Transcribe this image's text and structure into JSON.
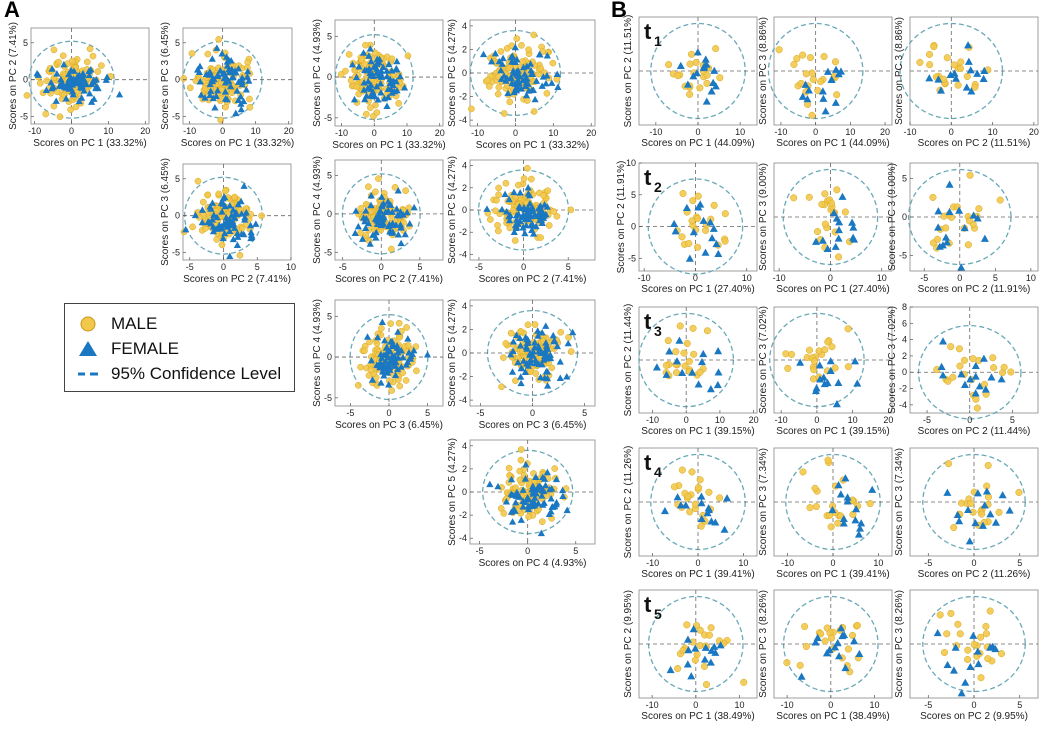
{
  "figure": {
    "panel_a_letter": "A",
    "panel_b_letter": "B",
    "legend": {
      "male": "MALE",
      "female": "FEMALE",
      "confidence": "95% Confidence Level"
    },
    "colors": {
      "male": "#f2c84b",
      "male_edge": "#d9a81e",
      "female": "#1a78c2",
      "ellipse": "#6aa9b8",
      "cross": "#666666"
    }
  },
  "chart_data": [
    {
      "id": "A-r0c0",
      "type": "scatter",
      "xlabel": "Scores on PC 1 (33.32%)",
      "ylabel": "Scores on PC 2 (7.41%)",
      "xticks": [
        -10,
        0,
        10,
        20
      ],
      "yticks": [
        -5,
        0,
        5
      ],
      "xlim": [
        -11,
        21
      ],
      "ylim": [
        -6,
        7
      ]
    },
    {
      "id": "A-r0c1",
      "type": "scatter",
      "xlabel": "Scores on PC 1 (33.32%)",
      "ylabel": "Scores on PC 3 (6.45%)",
      "xticks": [
        -10,
        0,
        10,
        20
      ],
      "yticks": [
        -5,
        0,
        5
      ],
      "xlim": [
        -12,
        21
      ],
      "ylim": [
        -6,
        7
      ]
    },
    {
      "id": "A-r0c2",
      "type": "scatter",
      "xlabel": "Scores on PC 1 (33.32%)",
      "ylabel": "Scores on PC 4 (4.93%)",
      "xticks": [
        -10,
        0,
        10,
        20
      ],
      "yticks": [
        -5,
        0,
        5
      ],
      "xlim": [
        -12,
        21
      ],
      "ylim": [
        -6,
        7
      ]
    },
    {
      "id": "A-r0c3",
      "type": "scatter",
      "xlabel": "Scores on PC 1 (33.32%)",
      "ylabel": "Scores on PC 5 (4.27%)",
      "xticks": [
        -10,
        0,
        10,
        20
      ],
      "yticks": [
        -4,
        -2,
        0,
        2,
        4
      ],
      "xlim": [
        -12,
        21
      ],
      "ylim": [
        -4.5,
        4.5
      ]
    },
    {
      "id": "A-r1c1",
      "type": "scatter",
      "xlabel": "Scores on PC 2 (7.41%)",
      "ylabel": "Scores on PC 3 (6.45%)",
      "xticks": [
        -5,
        0,
        5,
        10
      ],
      "yticks": [
        -5,
        0,
        5
      ],
      "xlim": [
        -6,
        10
      ],
      "ylim": [
        -6,
        7
      ]
    },
    {
      "id": "A-r1c2",
      "type": "scatter",
      "xlabel": "Scores on PC 2 (7.41%)",
      "ylabel": "Scores on PC 4 (4.93%)",
      "xticks": [
        -5,
        0,
        5
      ],
      "yticks": [
        -5,
        0,
        5
      ],
      "xlim": [
        -6,
        8
      ],
      "ylim": [
        -6,
        7
      ]
    },
    {
      "id": "A-r1c3",
      "type": "scatter",
      "xlabel": "Scores on PC 2 (7.41%)",
      "ylabel": "Scores on PC 5 (4.27%)",
      "xticks": [
        -5,
        0,
        5
      ],
      "yticks": [
        -4,
        -2,
        0,
        2,
        4
      ],
      "xlim": [
        -6,
        8
      ],
      "ylim": [
        -4.5,
        4.5
      ]
    },
    {
      "id": "A-r2c2",
      "type": "scatter",
      "xlabel": "Scores on PC 3 (6.45%)",
      "ylabel": "Scores on PC 4 (4.93%)",
      "xticks": [
        -5,
        0,
        5
      ],
      "yticks": [
        -5,
        0,
        5
      ],
      "xlim": [
        -7,
        7
      ],
      "ylim": [
        -6,
        7
      ]
    },
    {
      "id": "A-r2c3",
      "type": "scatter",
      "xlabel": "Scores on PC 3 (6.45%)",
      "ylabel": "Scores on PC 5 (4.27%)",
      "xticks": [
        -5,
        0,
        5
      ],
      "yticks": [
        -4,
        -2,
        0,
        2,
        4
      ],
      "xlim": [
        -6,
        6
      ],
      "ylim": [
        -4.5,
        4.5
      ]
    },
    {
      "id": "A-r3c3",
      "type": "scatter",
      "xlabel": "Scores on PC 4 (4.93%)",
      "ylabel": "Scores on PC 5 (4.27%)",
      "xticks": [
        -5,
        0,
        5
      ],
      "yticks": [
        -4,
        -2,
        0,
        2,
        4
      ],
      "xlim": [
        -6,
        7
      ],
      "ylim": [
        -4.5,
        4.5
      ]
    },
    {
      "id": "B-t1-c0",
      "type": "scatter",
      "time_label": "t",
      "time_sub": "1",
      "xlabel": "Scores on PC 1 (44.09%)",
      "ylabel": "Scores on PC 2 (11.51%)",
      "xticks": [
        -10,
        0,
        10
      ],
      "yticks": [],
      "xlim": [
        -14,
        14
      ],
      "ylim": [
        -6,
        6
      ]
    },
    {
      "id": "B-t1-c1",
      "type": "scatter",
      "xlabel": "Scores on PC 1 (44.09%)",
      "ylabel": "Scores on PC 3 (8.86%)",
      "xticks": [
        -10,
        0,
        10,
        20
      ],
      "yticks": [],
      "xlim": [
        -12,
        22
      ],
      "ylim": [
        -6,
        6
      ]
    },
    {
      "id": "B-t1-c2",
      "type": "scatter",
      "xlabel": "Scores on PC 2 (11.51%)",
      "ylabel": "Scores on PC 3 (8.86%)",
      "xticks": [
        -10,
        0,
        10,
        20
      ],
      "yticks": [],
      "xlim": [
        -10,
        21
      ],
      "ylim": [
        -6,
        6
      ]
    },
    {
      "id": "B-t2-c0",
      "type": "scatter",
      "time_label": "t",
      "time_sub": "2",
      "xlabel": "Scores on PC 1 (27.40%)",
      "ylabel": "Scores on PC 2 (11.91%)",
      "xticks": [
        -10,
        0,
        10
      ],
      "yticks": [
        -5,
        0,
        5,
        10
      ],
      "xlim": [
        -11,
        12
      ],
      "ylim": [
        -7,
        10
      ]
    },
    {
      "id": "B-t2-c1",
      "type": "scatter",
      "xlabel": "Scores on PC 1 (27.40%)",
      "ylabel": "Scores on PC 3 (9.00%)",
      "xticks": [
        -10,
        0,
        10
      ],
      "yticks": [],
      "xlim": [
        -11,
        12
      ],
      "ylim": [
        -7,
        7
      ]
    },
    {
      "id": "B-t2-c2",
      "type": "scatter",
      "xlabel": "Scores on PC 2 (11.91%)",
      "ylabel": "Scores on PC 3 (9.00%)",
      "xticks": [
        -5,
        0,
        5,
        10
      ],
      "yticks": [
        -5,
        0,
        5
      ],
      "xlim": [
        -7,
        11
      ],
      "ylim": [
        -7,
        7
      ]
    },
    {
      "id": "B-t3-c0",
      "type": "scatter",
      "time_label": "t",
      "time_sub": "3",
      "xlabel": "Scores on PC 1 (39.15%)",
      "ylabel": "Scores on PC 2 (11.44%)",
      "xticks": [
        -10,
        0,
        10,
        20
      ],
      "yticks": [],
      "xlim": [
        -14,
        21
      ],
      "ylim": [
        -7,
        7
      ]
    },
    {
      "id": "B-t3-c1",
      "type": "scatter",
      "xlabel": "Scores on PC 1 (39.15%)",
      "ylabel": "Scores on PC 3 (7.02%)",
      "xticks": [
        -10,
        0,
        10,
        20
      ],
      "yticks": [],
      "xlim": [
        -12,
        21
      ],
      "ylim": [
        -7,
        7
      ]
    },
    {
      "id": "B-t3-c2",
      "type": "scatter",
      "xlabel": "Scores on PC 2 (11.44%)",
      "ylabel": "Scores on PC 3 (7.02%)",
      "xticks": [
        -5,
        0,
        5
      ],
      "yticks": [
        -4,
        -2,
        0,
        2,
        4,
        6,
        8
      ],
      "xlim": [
        -7,
        8
      ],
      "ylim": [
        -5,
        8
      ]
    },
    {
      "id": "B-t4-c0",
      "type": "scatter",
      "time_label": "t",
      "time_sub": "4",
      "xlabel": "Scores on PC 1 (39.41%)",
      "ylabel": "Scores on PC 2 (11.26%)",
      "xticks": [
        -10,
        0,
        10
      ],
      "yticks": [],
      "xlim": [
        -13,
        13
      ],
      "ylim": [
        -6,
        6
      ]
    },
    {
      "id": "B-t4-c1",
      "type": "scatter",
      "xlabel": "Scores on PC 1 (39.41%)",
      "ylabel": "Scores on PC 3 (7.34%)",
      "xticks": [
        -10,
        0,
        10
      ],
      "yticks": [],
      "xlim": [
        -13,
        13
      ],
      "ylim": [
        -6,
        6
      ]
    },
    {
      "id": "B-t4-c2",
      "type": "scatter",
      "xlabel": "Scores on PC 2 (11.26%)",
      "ylabel": "Scores on PC 3 (7.34%)",
      "xticks": [
        -5,
        0,
        5
      ],
      "yticks": [],
      "xlim": [
        -7,
        7
      ],
      "ylim": [
        -6,
        6
      ]
    },
    {
      "id": "B-t5-c0",
      "type": "scatter",
      "time_label": "t",
      "time_sub": "5",
      "xlabel": "Scores on PC 1 (38.49%)",
      "ylabel": "Scores on PC 2 (9.95%)",
      "xticks": [
        -10,
        0,
        10
      ],
      "yticks": [],
      "xlim": [
        -13,
        14
      ],
      "ylim": [
        -6,
        6
      ]
    },
    {
      "id": "B-t5-c1",
      "type": "scatter",
      "xlabel": "Scores on PC 1 (38.49%)",
      "ylabel": "Scores on PC 3 (8.26%)",
      "xticks": [
        -10,
        0,
        10
      ],
      "yticks": [],
      "xlim": [
        -13,
        14
      ],
      "ylim": [
        -6,
        6
      ]
    },
    {
      "id": "B-t5-c2",
      "type": "scatter",
      "xlabel": "Scores on PC 2 (9.95%)",
      "ylabel": "Scores on PC 3 (8.26%)",
      "xticks": [
        -5,
        0,
        5
      ],
      "yticks": [],
      "xlim": [
        -7,
        7
      ],
      "ylim": [
        -6,
        6
      ]
    }
  ]
}
